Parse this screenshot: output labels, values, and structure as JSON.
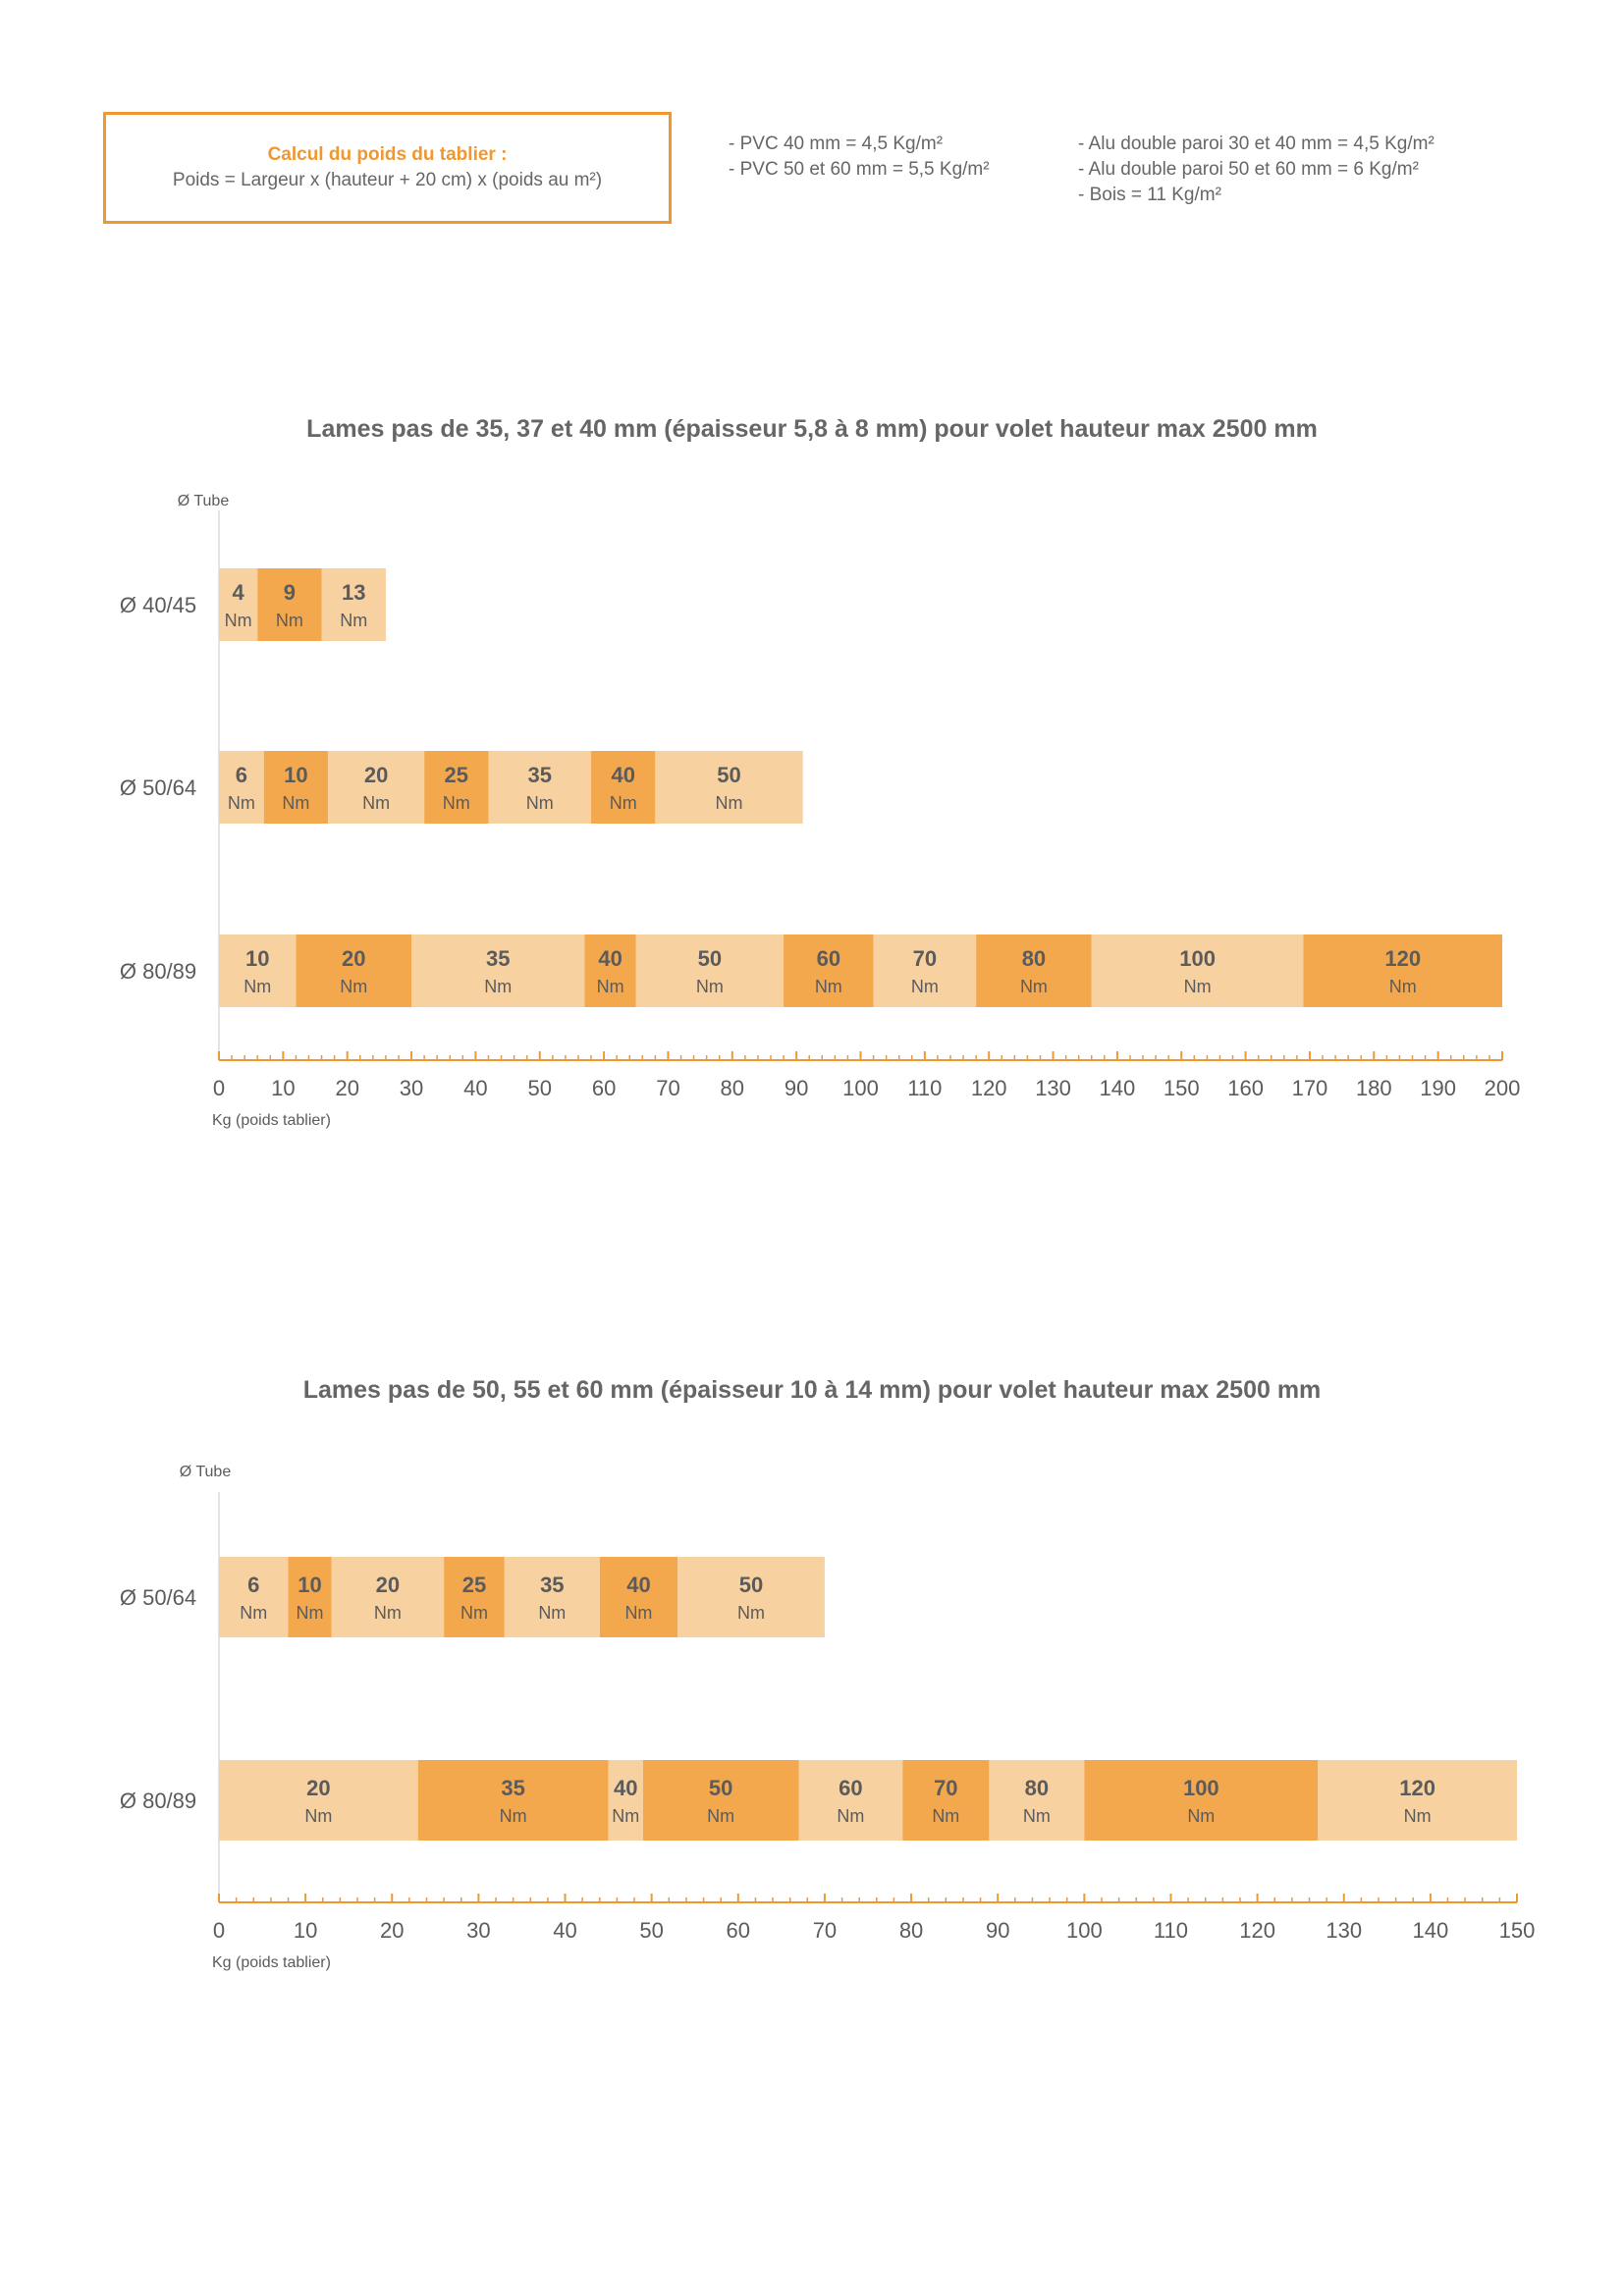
{
  "formula": {
    "title": "Calcul du poids du tablier :",
    "text": "Poids = Largeur x (hauteur + 20 cm) x (poids au m²)"
  },
  "weights": {
    "pvc": [
      "- PVC 40 mm = 4,5 Kg/m²",
      "- PVC 50 et 60 mm = 5,5 Kg/m²"
    ],
    "other": [
      "- Alu double paroi 30 et 40 mm = 4,5 Kg/m²",
      "- Alu double paroi 50 et 60 mm = 6 Kg/m²",
      "- Bois = 11 Kg/m²"
    ]
  },
  "colors": {
    "light": "#f8d1a0",
    "dark": "#f3a84e",
    "accent": "#f0972f",
    "text": "#5b5b5b"
  },
  "chart_data": [
    {
      "type": "bar",
      "title": "Lames pas de 35, 37 et 40 mm (épaisseur 5,8 à 8 mm) pour volet hauteur max 2500 mm",
      "ylabel": "Ø Tube",
      "xlabel": "Kg (poids tablier)",
      "xlim": [
        0,
        200
      ],
      "xticks": [
        0,
        10,
        20,
        30,
        40,
        50,
        60,
        70,
        80,
        90,
        100,
        110,
        120,
        130,
        140,
        150,
        160,
        170,
        180,
        190,
        200
      ],
      "unit": "Nm",
      "rows": [
        {
          "tube": "Ø 40/45",
          "segments": [
            {
              "torque": "4",
              "from": 0,
              "to": 6
            },
            {
              "torque": "9",
              "from": 6,
              "to": 16
            },
            {
              "torque": "13",
              "from": 16,
              "to": 26
            }
          ]
        },
        {
          "tube": "Ø 50/64",
          "segments": [
            {
              "torque": "6",
              "from": 0,
              "to": 7
            },
            {
              "torque": "10",
              "from": 7,
              "to": 17
            },
            {
              "torque": "20",
              "from": 17,
              "to": 32
            },
            {
              "torque": "25",
              "from": 32,
              "to": 42
            },
            {
              "torque": "35",
              "from": 42,
              "to": 58
            },
            {
              "torque": "40",
              "from": 58,
              "to": 68
            },
            {
              "torque": "50",
              "from": 68,
              "to": 91
            }
          ]
        },
        {
          "tube": "Ø 80/89",
          "segments": [
            {
              "torque": "10",
              "from": 0,
              "to": 12
            },
            {
              "torque": "20",
              "from": 12,
              "to": 30
            },
            {
              "torque": "35",
              "from": 30,
              "to": 57
            },
            {
              "torque": "40",
              "from": 57,
              "to": 65
            },
            {
              "torque": "50",
              "from": 65,
              "to": 88
            },
            {
              "torque": "60",
              "from": 88,
              "to": 102
            },
            {
              "torque": "70",
              "from": 102,
              "to": 118
            },
            {
              "torque": "80",
              "from": 118,
              "to": 136
            },
            {
              "torque": "100",
              "from": 136,
              "to": 169
            },
            {
              "torque": "120",
              "from": 169,
              "to": 200
            }
          ]
        }
      ]
    },
    {
      "type": "bar",
      "title": "Lames pas de 50, 55 et 60 mm (épaisseur 10 à 14 mm) pour volet hauteur max 2500 mm",
      "ylabel": "Ø Tube",
      "xlabel": "Kg (poids tablier)",
      "xlim": [
        0,
        150
      ],
      "xticks": [
        0,
        10,
        20,
        30,
        40,
        50,
        60,
        70,
        80,
        90,
        100,
        110,
        120,
        130,
        140,
        150
      ],
      "unit": "Nm",
      "rows": [
        {
          "tube": "Ø 50/64",
          "segments": [
            {
              "torque": "6",
              "from": 0,
              "to": 8
            },
            {
              "torque": "10",
              "from": 8,
              "to": 13
            },
            {
              "torque": "20",
              "from": 13,
              "to": 26
            },
            {
              "torque": "25",
              "from": 26,
              "to": 33
            },
            {
              "torque": "35",
              "from": 33,
              "to": 44
            },
            {
              "torque": "40",
              "from": 44,
              "to": 53
            },
            {
              "torque": "50",
              "from": 53,
              "to": 70
            }
          ]
        },
        {
          "tube": "Ø 80/89",
          "segments": [
            {
              "torque": "20",
              "from": 0,
              "to": 23
            },
            {
              "torque": "35",
              "from": 23,
              "to": 45
            },
            {
              "torque": "40",
              "from": 45,
              "to": 49
            },
            {
              "torque": "50",
              "from": 49,
              "to": 67
            },
            {
              "torque": "60",
              "from": 67,
              "to": 79
            },
            {
              "torque": "70",
              "from": 79,
              "to": 89
            },
            {
              "torque": "80",
              "from": 89,
              "to": 100
            },
            {
              "torque": "100",
              "from": 100,
              "to": 127
            },
            {
              "torque": "120",
              "from": 127,
              "to": 150
            }
          ]
        }
      ]
    }
  ]
}
